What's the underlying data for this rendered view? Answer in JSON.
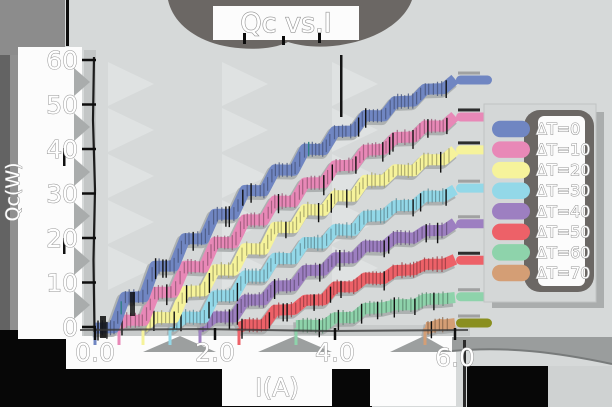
{
  "title": "Qc vs.I",
  "axes": {
    "xlabel": "I(A)",
    "ylabel": "Qc(W)",
    "x_tick_labels": [
      "0.0",
      "2.0",
      "4.0",
      "6.0"
    ],
    "y_tick_labels": [
      "0",
      "10",
      "20",
      "30",
      "40",
      "50",
      "60"
    ]
  },
  "legend": {
    "position": "right",
    "entries": [
      "ΔT=0",
      "ΔT=10",
      "ΔT=20",
      "ΔT=30",
      "ΔT=40",
      "ΔT=50",
      "ΔT=60",
      "ΔT=70"
    ]
  },
  "chart_data": {
    "type": "line",
    "title": "Qc vs.I",
    "xlabel": "I(A)",
    "ylabel": "Qc(W)",
    "xlim": [
      0,
      6.6
    ],
    "ylim": [
      0,
      60
    ],
    "x_ticks": [
      0,
      2,
      4,
      6
    ],
    "y_ticks": [
      0,
      10,
      20,
      30,
      40,
      50,
      60
    ],
    "grid": false,
    "legend_position": "right",
    "style": "hand-drawn ribbons with hatch marks, white outlined labels on gray",
    "series": [
      {
        "name": "ΔT=0",
        "color": "#7086c2",
        "hatch_accent": "#2a8080",
        "cap_bar": "gray",
        "x": [
          0,
          0.5,
          1,
          1.5,
          2,
          2.5,
          3,
          3.5,
          4,
          4.5,
          5,
          5.5,
          6
        ],
        "q": [
          0,
          7.0,
          13.5,
          19.6,
          25.3,
          30.5,
          35.4,
          39.8,
          43.8,
          47.3,
          50.5,
          53.2,
          55.5
        ]
      },
      {
        "name": "ΔT=10",
        "color": "#e888b7",
        "cap_bar": "black",
        "x": [
          0.4,
          0.5,
          1,
          1.5,
          2,
          2.5,
          3,
          3.5,
          4,
          4.5,
          5,
          5.5,
          6
        ],
        "q": [
          0,
          1.3,
          7.5,
          13.4,
          18.8,
          23.8,
          28.4,
          32.5,
          36.3,
          39.7,
          42.6,
          45.1,
          47.2
        ]
      },
      {
        "name": "ΔT=20",
        "color": "#f6f39b",
        "cap_bar": "black",
        "x": [
          0.8,
          1,
          1.5,
          2,
          2.5,
          3,
          3.5,
          4,
          4.5,
          5,
          5.5,
          6
        ],
        "q": [
          0,
          2.3,
          7.9,
          13.1,
          17.8,
          22.2,
          26.1,
          29.7,
          32.8,
          35.5,
          37.9,
          39.8
        ]
      },
      {
        "name": "ΔT=30",
        "color": "#93d8e8",
        "cap_bar": "gray",
        "x": [
          1.25,
          1.5,
          2,
          2.5,
          3,
          3.5,
          4,
          4.5,
          5,
          5.5,
          6
        ],
        "q": [
          0,
          2.5,
          7.2,
          11.5,
          15.5,
          19.1,
          22.2,
          25.1,
          27.5,
          29.5,
          31.2
        ]
      },
      {
        "name": "ΔT=40",
        "color": "#9d7fc1",
        "cap_bar": "gray",
        "x": [
          1.75,
          2,
          2.5,
          3,
          3.5,
          4,
          4.5,
          5,
          5.5,
          6
        ],
        "q": [
          0,
          2.1,
          5.9,
          9.5,
          12.6,
          15.5,
          17.9,
          20.0,
          21.8,
          23.2
        ]
      },
      {
        "name": "ΔT=50",
        "color": "#ed6168",
        "cap_bar": "black",
        "x": [
          2.4,
          2.5,
          3,
          3.5,
          4,
          4.5,
          5,
          5.5,
          6
        ],
        "q": [
          0,
          0.6,
          3.6,
          6.3,
          8.7,
          10.8,
          12.5,
          13.9,
          15.0
        ]
      },
      {
        "name": "ΔT=60",
        "color": "#8ed3ab",
        "cap_bar": "gray",
        "x": [
          3.35,
          3.5,
          4,
          4.5,
          5,
          5.5,
          6
        ],
        "q": [
          0,
          0.6,
          2.4,
          3.9,
          5.1,
          6.1,
          6.8
        ]
      },
      {
        "name": "ΔT=70",
        "color": "#d49e75",
        "cap_color": "#8a8f1f",
        "cap_bar": "gray",
        "x": [
          5.5,
          5.75,
          6
        ],
        "q": [
          0,
          0.6,
          0.9
        ]
      }
    ]
  },
  "colors": {
    "background": "#d6d9d9",
    "shadow_blob": "#6b6764",
    "panel_white": "#fcfcfc",
    "dark_corner": "#070707",
    "text_fill": "#ffffff",
    "text_outline": "#929292"
  }
}
